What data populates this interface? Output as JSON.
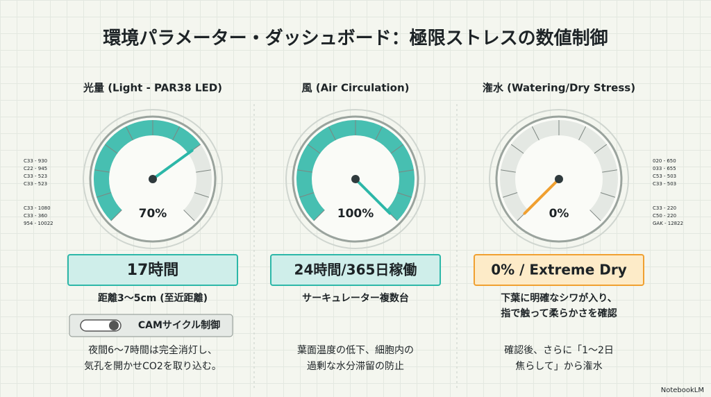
{
  "title": "環境パラメーター・ダッシュボード：極限ストレスの数値制御",
  "panels": [
    {
      "heading": "光量 (Light - PAR38 LED)",
      "color": "#2cb7a8",
      "gauge": {
        "value": 70,
        "label": "70%",
        "range": [
          0,
          100
        ]
      },
      "banner": "17時間",
      "detail": [
        "距離3～5cm (至近距離)"
      ],
      "toggle": "CAMサイクル制御",
      "note": [
        "夜間6～7時間は完全消灯し、",
        "気孔を開かせCO2を取り込む。"
      ]
    },
    {
      "heading": "風 (Air Circulation)",
      "color": "#2cb7a8",
      "gauge": {
        "value": 100,
        "label": "100%",
        "range": [
          0,
          100
        ]
      },
      "banner": "24時間/365日稼働",
      "detail": [
        "サーキュレーター複数台"
      ],
      "note": [
        "葉面温度の低下、細胞内の",
        "過剰な水分滞留の防止"
      ]
    },
    {
      "heading": "潅水 (Watering/Dry Stress)",
      "color": "#f0a030",
      "gauge": {
        "value": 0,
        "label": "0%",
        "range": [
          0,
          100
        ]
      },
      "banner": "0% / Extreme Dry",
      "detail": [
        "下葉に明確なシワが入り、",
        "指で触って柔らかさを確認"
      ],
      "note": [
        "確認後、さらに「1～2日",
        "焦らして」から潅水"
      ]
    }
  ],
  "side_codes_left": [
    "C33 - 930",
    "C22 - 945",
    "C33 - 523",
    "C33 - 523",
    "C33 - 1080",
    "C33 - 360",
    "954 - 10022"
  ],
  "side_codes_right": [
    "020 - 650",
    "033 - 655",
    "C53 - 503",
    "C33 - 503",
    "C33 - 220",
    "C50 - 220",
    "GAK - 12822"
  ],
  "footer": "NotebookLM"
}
